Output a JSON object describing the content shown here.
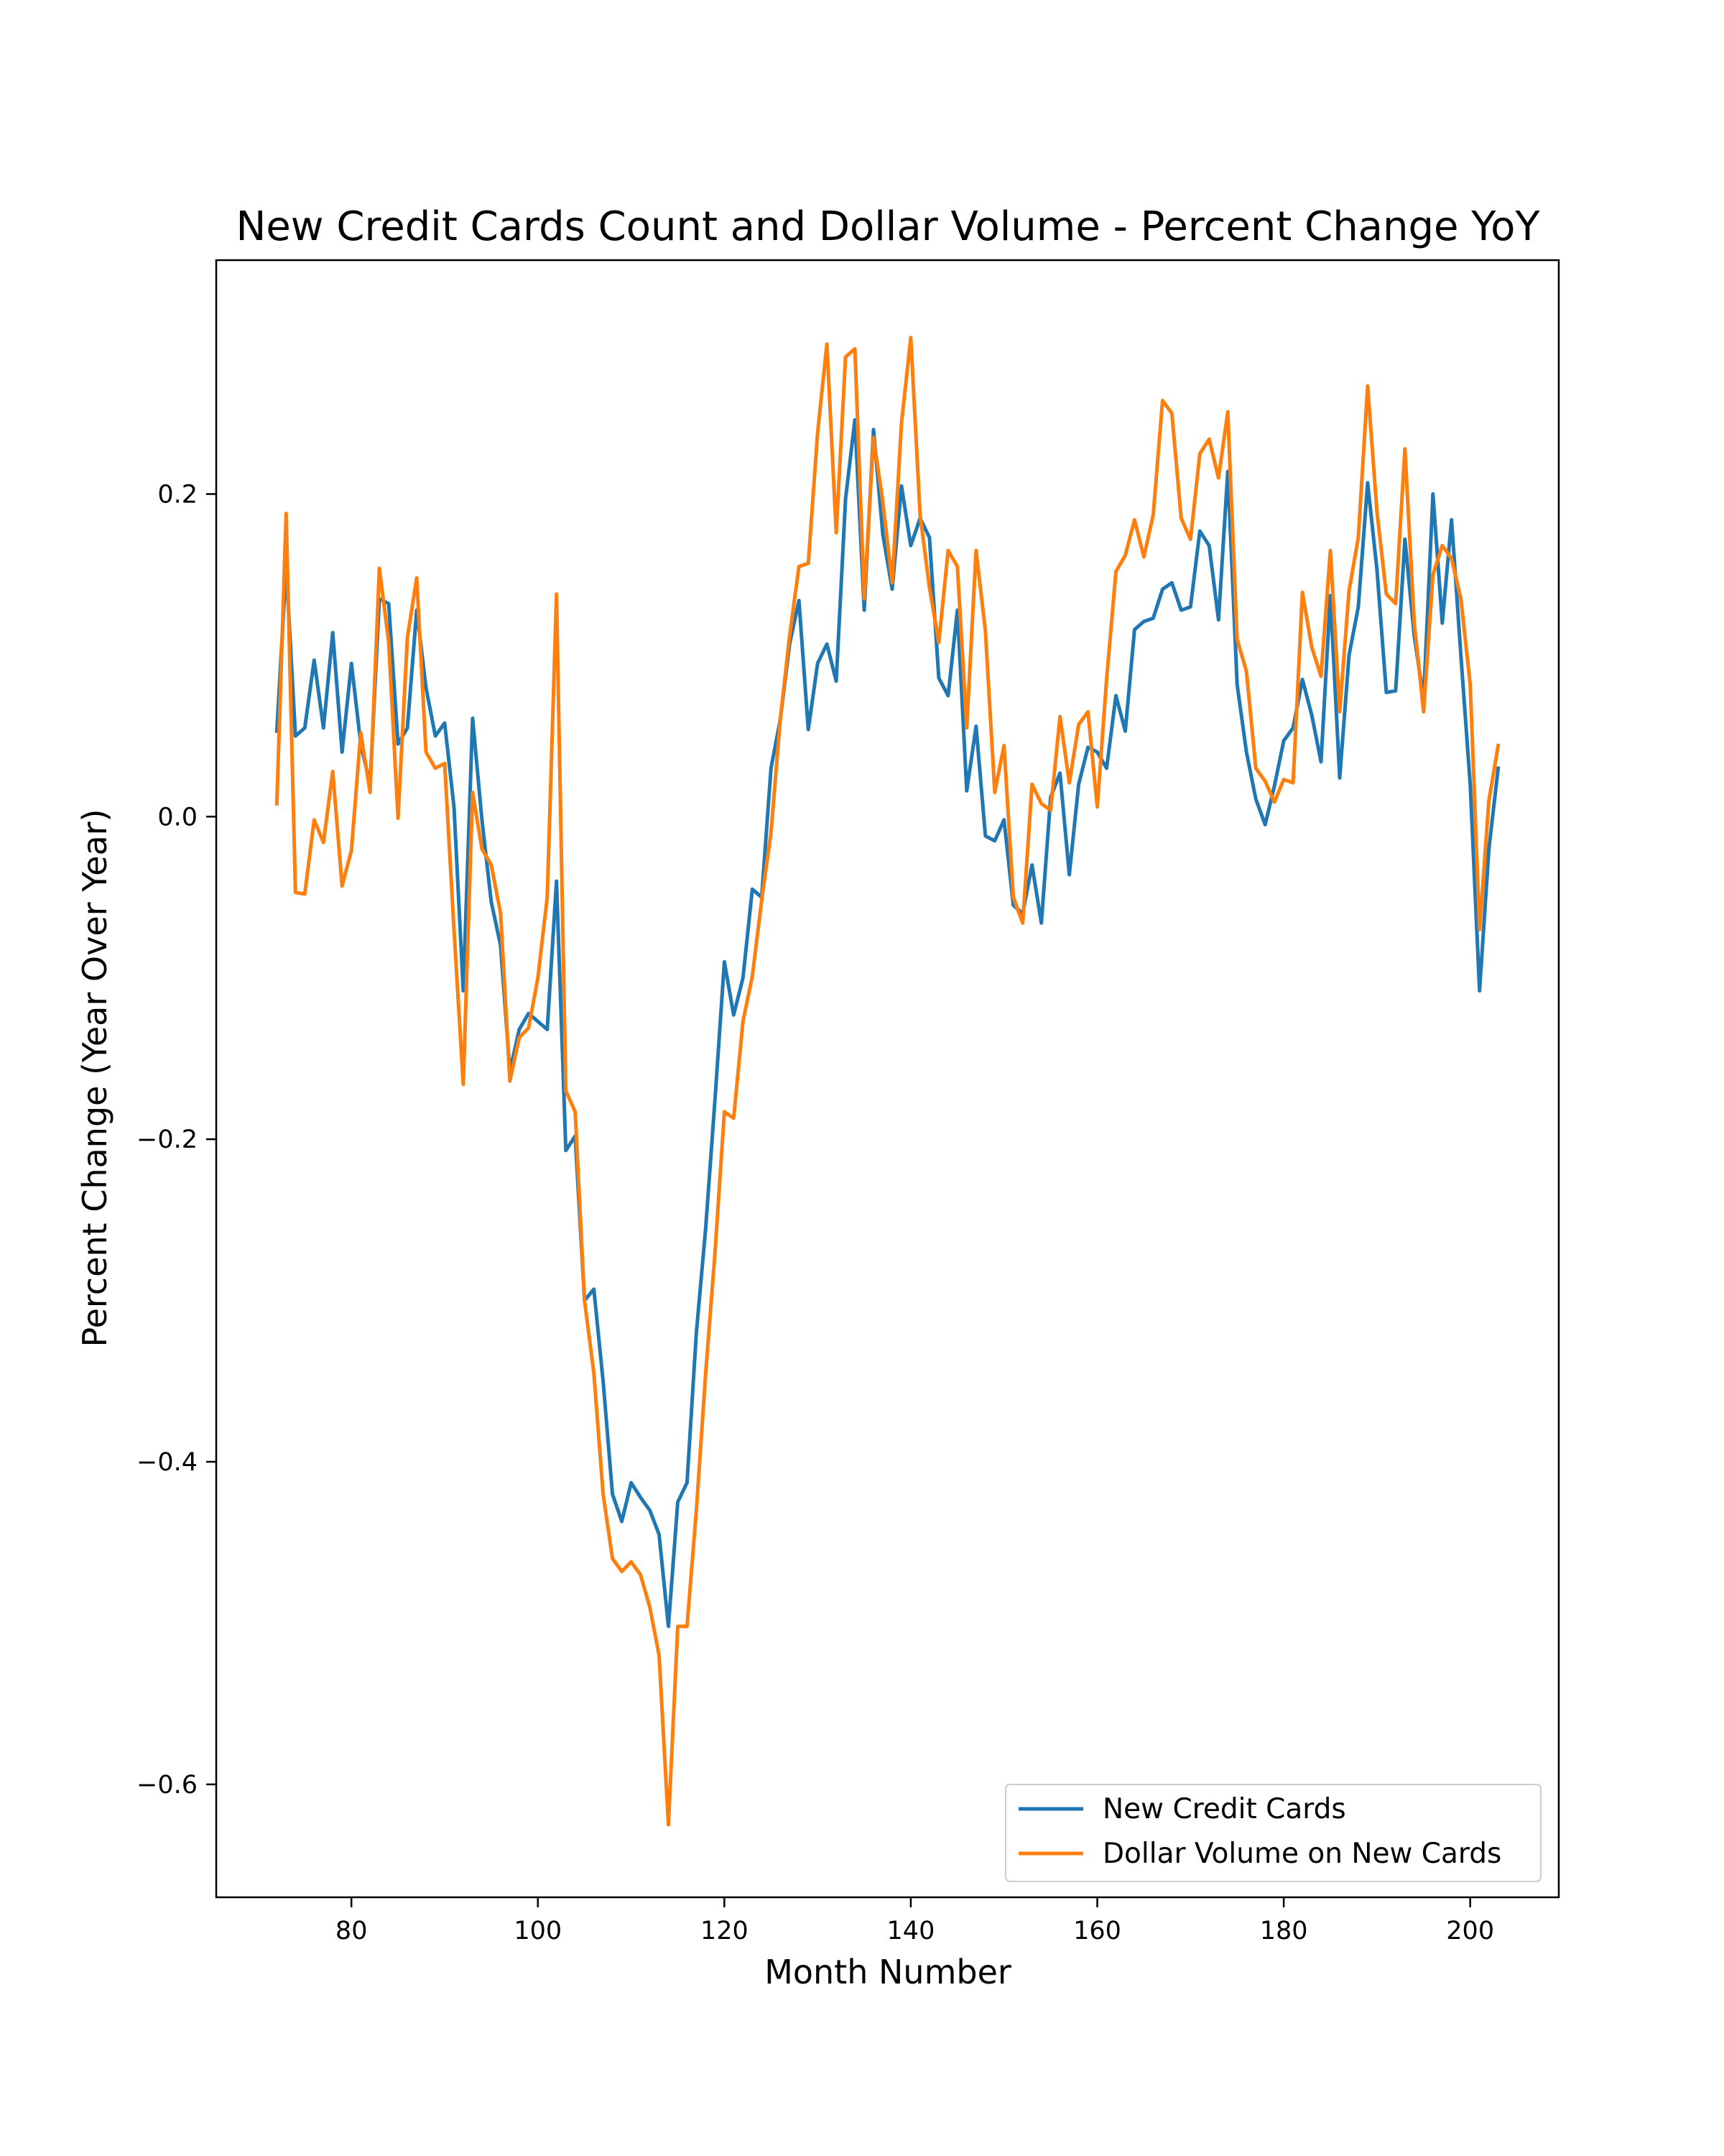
{
  "chart_data": {
    "type": "line",
    "title": "New Credit Cards Count and Dollar Volume - Percent Change YoY",
    "xlabel": "Month Number",
    "ylabel": "Percent Change (Year Over Year)",
    "xlim": [
      65.5,
      209.5
    ],
    "ylim": [
      -0.67,
      0.345
    ],
    "xticks": [
      80,
      100,
      120,
      140,
      160,
      180,
      200
    ],
    "yticks": [
      -0.6,
      -0.4,
      -0.2,
      0.0,
      0.2
    ],
    "ytick_labels": [
      "−0.6",
      "−0.4",
      "−0.2",
      "0.0",
      "0.2"
    ],
    "grid": false,
    "legend_position": "lower-right",
    "x_start": 72,
    "series": [
      {
        "name": "New Credit Cards",
        "color": "#1f77b4",
        "values": [
          0.053,
          0.155,
          0.05,
          0.055,
          0.097,
          0.055,
          0.114,
          0.04,
          0.095,
          0.045,
          0.02,
          0.135,
          0.132,
          0.045,
          0.055,
          0.128,
          0.08,
          0.05,
          0.058,
          0.006,
          -0.108,
          0.061,
          -0.002,
          -0.053,
          -0.08,
          -0.158,
          -0.132,
          -0.122,
          -0.127,
          -0.132,
          -0.04,
          -0.207,
          -0.198,
          -0.3,
          -0.293,
          -0.35,
          -0.42,
          -0.437,
          -0.413,
          -0.422,
          -0.43,
          -0.445,
          -0.502,
          -0.425,
          -0.413,
          -0.32,
          -0.255,
          -0.175,
          -0.09,
          -0.123,
          -0.1,
          -0.045,
          -0.05,
          0.03,
          0.06,
          0.107,
          0.134,
          0.054,
          0.095,
          0.107,
          0.084,
          0.197,
          0.246,
          0.128,
          0.24,
          0.175,
          0.141,
          0.205,
          0.168,
          0.185,
          0.173,
          0.086,
          0.075,
          0.128,
          0.016,
          0.056,
          -0.012,
          -0.015,
          -0.002,
          -0.055,
          -0.06,
          -0.03,
          -0.066,
          0.012,
          0.027,
          -0.036,
          0.02,
          0.043,
          0.04,
          0.03,
          0.075,
          0.053,
          0.116,
          0.121,
          0.123,
          0.141,
          0.145,
          0.128,
          0.13,
          0.177,
          0.168,
          0.122,
          0.214,
          0.082,
          0.04,
          0.011,
          -0.005,
          0.019,
          0.047,
          0.055,
          0.085,
          0.063,
          0.034,
          0.137,
          0.024,
          0.1,
          0.13,
          0.207,
          0.153,
          0.077,
          0.078,
          0.172,
          0.112,
          0.073,
          0.2,
          0.12,
          0.184,
          0.1,
          0.02,
          -0.108,
          -0.02,
          0.03
        ]
      },
      {
        "name": "Dollar Volume on New Cards",
        "color": "#ff7f0e",
        "values": [
          0.008,
          0.188,
          -0.047,
          -0.048,
          -0.002,
          -0.016,
          0.028,
          -0.043,
          -0.021,
          0.052,
          0.015,
          0.154,
          0.108,
          -0.001,
          0.111,
          0.148,
          0.04,
          0.03,
          0.033,
          -0.07,
          -0.166,
          0.015,
          -0.02,
          -0.03,
          -0.06,
          -0.164,
          -0.137,
          -0.131,
          -0.1,
          -0.05,
          0.138,
          -0.17,
          -0.183,
          -0.3,
          -0.345,
          -0.42,
          -0.46,
          -0.468,
          -0.462,
          -0.47,
          -0.49,
          -0.52,
          -0.625,
          -0.502,
          -0.502,
          -0.43,
          -0.345,
          -0.27,
          -0.183,
          -0.187,
          -0.127,
          -0.099,
          -0.052,
          -0.01,
          0.06,
          0.112,
          0.155,
          0.157,
          0.238,
          0.293,
          0.176,
          0.285,
          0.29,
          0.135,
          0.235,
          0.195,
          0.145,
          0.244,
          0.297,
          0.187,
          0.142,
          0.108,
          0.165,
          0.155,
          0.055,
          0.165,
          0.115,
          0.015,
          0.044,
          -0.05,
          -0.066,
          0.02,
          0.008,
          0.004,
          0.062,
          0.021,
          0.057,
          0.065,
          0.006,
          0.085,
          0.152,
          0.162,
          0.184,
          0.161,
          0.187,
          0.258,
          0.25,
          0.185,
          0.172,
          0.225,
          0.234,
          0.21,
          0.251,
          0.11,
          0.09,
          0.03,
          0.022,
          0.009,
          0.023,
          0.021,
          0.139,
          0.105,
          0.087,
          0.165,
          0.065,
          0.14,
          0.173,
          0.267,
          0.189,
          0.138,
          0.132,
          0.228,
          0.12,
          0.065,
          0.15,
          0.168,
          0.16,
          0.135,
          0.082,
          -0.07,
          0.01,
          0.044
        ]
      }
    ]
  }
}
